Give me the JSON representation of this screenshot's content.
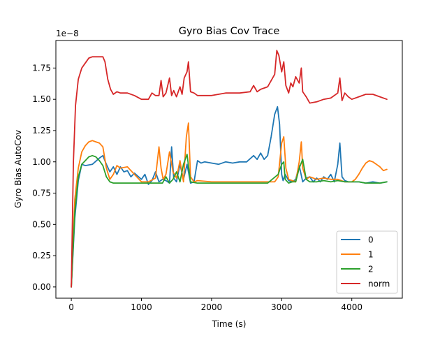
{
  "chart_data": {
    "type": "line",
    "title": "Gyro Bias Cov Trace",
    "xlabel": "Time (s)",
    "ylabel": "Gyro Bias AutoCov",
    "y_offset_label": "1e−8",
    "y_scale": 1e-08,
    "xlim": [
      -220,
      4720
    ],
    "ylim": [
      -0.09,
      1.97
    ],
    "x_ticks": [
      0,
      1000,
      2000,
      3000,
      4000
    ],
    "y_ticks": [
      0.0,
      0.25,
      0.5,
      0.75,
      1.0,
      1.25,
      1.5,
      1.75
    ],
    "x_tick_labels": [
      "0",
      "1000",
      "2000",
      "3000",
      "4000"
    ],
    "y_tick_labels": [
      "0.00",
      "0.25",
      "0.50",
      "0.75",
      "1.00",
      "1.25",
      "1.50",
      "1.75"
    ],
    "grid": false,
    "legend_position": "bottom-right",
    "series": [
      {
        "name": "0",
        "color": "#1f77b4",
        "x": [
          0,
          50,
          100,
          150,
          200,
          300,
          400,
          450,
          500,
          550,
          600,
          650,
          700,
          750,
          800,
          850,
          900,
          1000,
          1050,
          1100,
          1150,
          1200,
          1250,
          1300,
          1350,
          1400,
          1430,
          1460,
          1500,
          1550,
          1600,
          1650,
          1700,
          1750,
          1800,
          1850,
          1900,
          2000,
          2100,
          2200,
          2300,
          2400,
          2500,
          2600,
          2650,
          2700,
          2750,
          2800,
          2850,
          2900,
          2940,
          2970,
          3000,
          3020,
          3050,
          3100,
          3150,
          3200,
          3250,
          3300,
          3350,
          3400,
          3450,
          3500,
          3550,
          3600,
          3650,
          3700,
          3750,
          3800,
          3830,
          3860,
          3900,
          3950,
          4000,
          4100,
          4200,
          4300,
          4400,
          4500
        ],
        "y": [
          0.0,
          0.55,
          0.85,
          0.98,
          0.97,
          0.98,
          1.03,
          1.05,
          0.98,
          0.92,
          0.96,
          0.9,
          0.96,
          0.92,
          0.93,
          0.88,
          0.91,
          0.86,
          0.9,
          0.82,
          0.85,
          0.92,
          0.84,
          0.86,
          0.85,
          0.83,
          1.12,
          0.87,
          0.84,
          0.98,
          0.86,
          0.98,
          0.83,
          0.84,
          1.01,
          0.99,
          1.0,
          0.99,
          0.98,
          1.0,
          0.99,
          1.0,
          1.0,
          1.05,
          1.02,
          1.07,
          1.02,
          1.05,
          1.2,
          1.38,
          1.44,
          1.3,
          0.9,
          0.85,
          0.9,
          0.85,
          0.84,
          0.86,
          0.97,
          0.84,
          0.87,
          0.88,
          0.84,
          0.87,
          0.84,
          0.88,
          0.86,
          0.9,
          0.84,
          0.98,
          1.15,
          0.88,
          0.85,
          0.84,
          0.84,
          0.84,
          0.83,
          0.84,
          0.83,
          0.84
        ]
      },
      {
        "name": "1",
        "color": "#ff7f0e",
        "x": [
          0,
          50,
          100,
          150,
          200,
          250,
          300,
          350,
          400,
          450,
          500,
          550,
          600,
          650,
          700,
          800,
          900,
          1000,
          1100,
          1200,
          1250,
          1280,
          1310,
          1350,
          1400,
          1450,
          1500,
          1550,
          1600,
          1640,
          1670,
          1700,
          1750,
          1800,
          2000,
          2200,
          2400,
          2600,
          2800,
          2900,
          2950,
          3000,
          3030,
          3060,
          3100,
          3150,
          3200,
          3250,
          3280,
          3300,
          3350,
          3400,
          3500,
          3600,
          3700,
          3800,
          3900,
          4000,
          4050,
          4100,
          4150,
          4200,
          4250,
          4300,
          4350,
          4400,
          4450,
          4500
        ],
        "y": [
          0.0,
          0.7,
          0.95,
          1.08,
          1.13,
          1.16,
          1.17,
          1.16,
          1.15,
          1.12,
          0.95,
          0.86,
          0.9,
          0.97,
          0.95,
          0.96,
          0.9,
          0.84,
          0.84,
          0.87,
          1.12,
          0.95,
          0.86,
          0.9,
          1.08,
          0.92,
          0.87,
          1.01,
          0.84,
          1.2,
          1.31,
          0.88,
          0.84,
          0.85,
          0.84,
          0.84,
          0.84,
          0.84,
          0.84,
          0.84,
          0.88,
          1.15,
          1.2,
          0.95,
          0.86,
          0.85,
          0.84,
          1.0,
          1.16,
          0.95,
          0.86,
          0.88,
          0.86,
          0.87,
          0.86,
          0.86,
          0.84,
          0.84,
          0.86,
          0.9,
          0.95,
          0.99,
          1.01,
          1.0,
          0.98,
          0.96,
          0.93,
          0.94
        ]
      },
      {
        "name": "2",
        "color": "#2ca02c",
        "x": [
          0,
          50,
          100,
          150,
          200,
          250,
          300,
          350,
          400,
          450,
          500,
          550,
          600,
          700,
          800,
          1000,
          1200,
          1300,
          1350,
          1400,
          1450,
          1500,
          1550,
          1600,
          1650,
          1700,
          1800,
          2000,
          2200,
          2400,
          2600,
          2800,
          2950,
          3000,
          3030,
          3050,
          3100,
          3150,
          3200,
          3250,
          3300,
          3350,
          3400,
          3500,
          3600,
          3700,
          3800,
          3900,
          4000,
          4100,
          4200,
          4300,
          4400,
          4500
        ],
        "y": [
          0.0,
          0.6,
          0.88,
          0.98,
          1.01,
          1.04,
          1.05,
          1.04,
          1.01,
          0.97,
          0.88,
          0.84,
          0.83,
          0.83,
          0.83,
          0.83,
          0.83,
          0.83,
          0.88,
          0.83,
          0.86,
          0.92,
          0.84,
          0.98,
          1.06,
          0.84,
          0.83,
          0.83,
          0.83,
          0.83,
          0.83,
          0.83,
          0.9,
          0.98,
          1.0,
          0.86,
          0.83,
          0.84,
          0.84,
          0.95,
          1.02,
          0.86,
          0.84,
          0.84,
          0.85,
          0.84,
          0.85,
          0.84,
          0.84,
          0.84,
          0.83,
          0.83,
          0.83,
          0.84
        ]
      },
      {
        "name": "norm",
        "color": "#d62728",
        "x": [
          0,
          30,
          60,
          100,
          150,
          200,
          250,
          300,
          350,
          400,
          450,
          480,
          520,
          560,
          600,
          650,
          700,
          800,
          900,
          1000,
          1100,
          1150,
          1200,
          1250,
          1280,
          1310,
          1350,
          1400,
          1430,
          1460,
          1500,
          1550,
          1580,
          1610,
          1650,
          1670,
          1700,
          1750,
          1800,
          2000,
          2200,
          2400,
          2550,
          2600,
          2650,
          2700,
          2800,
          2900,
          2930,
          2960,
          3000,
          3030,
          3060,
          3100,
          3130,
          3160,
          3200,
          3250,
          3280,
          3300,
          3350,
          3400,
          3500,
          3600,
          3700,
          3800,
          3830,
          3860,
          3900,
          3950,
          4000,
          4100,
          4200,
          4300,
          4400,
          4500
        ],
        "y": [
          0.0,
          1.0,
          1.45,
          1.66,
          1.75,
          1.79,
          1.83,
          1.84,
          1.84,
          1.84,
          1.84,
          1.8,
          1.66,
          1.58,
          1.54,
          1.56,
          1.55,
          1.55,
          1.53,
          1.5,
          1.5,
          1.55,
          1.53,
          1.53,
          1.65,
          1.52,
          1.55,
          1.67,
          1.53,
          1.57,
          1.52,
          1.6,
          1.54,
          1.67,
          1.72,
          1.8,
          1.56,
          1.55,
          1.53,
          1.53,
          1.55,
          1.55,
          1.56,
          1.61,
          1.56,
          1.58,
          1.6,
          1.7,
          1.89,
          1.85,
          1.72,
          1.8,
          1.61,
          1.55,
          1.63,
          1.6,
          1.68,
          1.63,
          1.75,
          1.56,
          1.52,
          1.47,
          1.48,
          1.5,
          1.51,
          1.55,
          1.67,
          1.49,
          1.55,
          1.52,
          1.5,
          1.52,
          1.54,
          1.54,
          1.52,
          1.5
        ]
      }
    ]
  }
}
